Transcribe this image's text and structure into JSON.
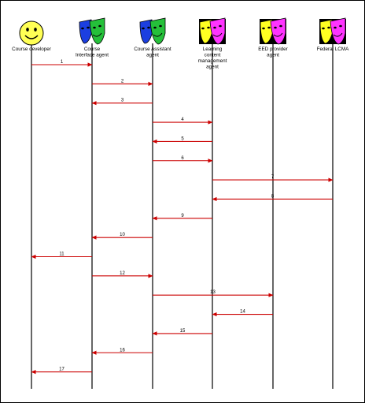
{
  "actors": [
    {
      "id": "developer",
      "lines": [
        "Course developer"
      ],
      "icon": "smiley-face-icon",
      "face_color": "#ffff55"
    },
    {
      "id": "interface",
      "lines": [
        "Course",
        "Interface agent"
      ],
      "icon": "theater-masks-icon",
      "mask_colors": [
        "#1c3fe0",
        "#25c03a"
      ]
    },
    {
      "id": "assistant",
      "lines": [
        "Course Assistant",
        "agent"
      ],
      "icon": "theater-masks-icon",
      "mask_colors": [
        "#1c3fe0",
        "#25c03a"
      ]
    },
    {
      "id": "lcma",
      "lines": [
        "Learning",
        "content",
        "management",
        "agent"
      ],
      "icon": "theater-masks-icon",
      "mask_colors": [
        "#ffff22",
        "#ff33ff"
      ]
    },
    {
      "id": "eed",
      "lines": [
        "EED provider",
        "agent"
      ],
      "icon": "theater-masks-icon",
      "mask_colors": [
        "#ffff22",
        "#ff33ff"
      ]
    },
    {
      "id": "federal",
      "lines": [
        "Federal LCMA"
      ],
      "icon": "theater-masks-icon",
      "mask_colors": [
        "#ffff22",
        "#ff33ff"
      ]
    }
  ],
  "messages": [
    {
      "label": "1",
      "from": "developer",
      "to": "interface"
    },
    {
      "label": "2",
      "from": "interface",
      "to": "assistant"
    },
    {
      "label": "3",
      "from": "assistant",
      "to": "interface"
    },
    {
      "label": "4",
      "from": "assistant",
      "to": "lcma"
    },
    {
      "label": "5",
      "from": "lcma",
      "to": "assistant"
    },
    {
      "label": "6",
      "from": "assistant",
      "to": "lcma"
    },
    {
      "label": "7",
      "from": "lcma",
      "to": "federal"
    },
    {
      "label": "8",
      "from": "federal",
      "to": "lcma"
    },
    {
      "label": "9",
      "from": "lcma",
      "to": "assistant"
    },
    {
      "label": "10",
      "from": "assistant",
      "to": "interface"
    },
    {
      "label": "11",
      "from": "interface",
      "to": "developer"
    },
    {
      "label": "12",
      "from": "interface",
      "to": "assistant"
    },
    {
      "label": "13",
      "from": "assistant",
      "to": "eed"
    },
    {
      "label": "14",
      "from": "eed",
      "to": "lcma"
    },
    {
      "label": "15",
      "from": "lcma",
      "to": "assistant"
    },
    {
      "label": "16",
      "from": "assistant",
      "to": "interface"
    },
    {
      "label": "17",
      "from": "interface",
      "to": "developer"
    }
  ],
  "colors": {
    "message_arrow": "#cc0000",
    "lifeline": "#000000",
    "mask_background": "#000000"
  }
}
